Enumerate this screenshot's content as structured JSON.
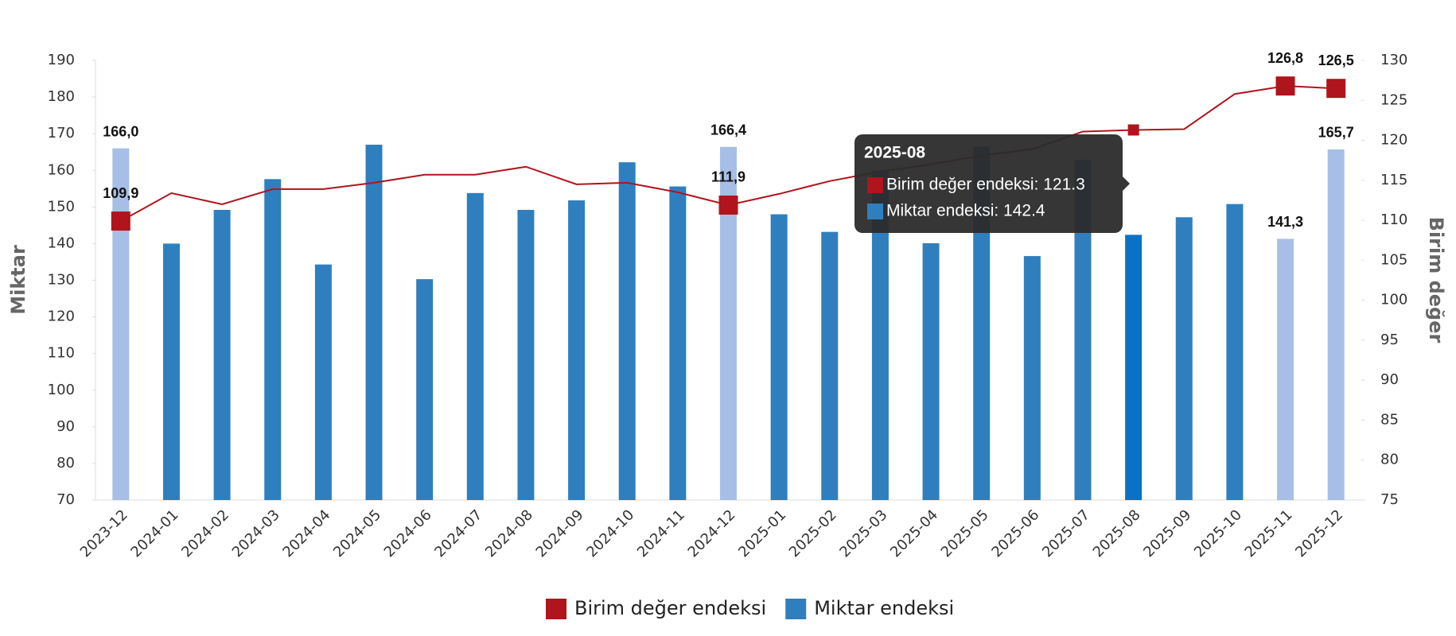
{
  "chart_data": {
    "type": "combo",
    "categories": [
      "2023-12",
      "2024-01",
      "2024-02",
      "2024-03",
      "2024-04",
      "2024-05",
      "2024-06",
      "2024-07",
      "2024-08",
      "2024-09",
      "2024-10",
      "2024-11",
      "2024-12",
      "2025-01",
      "2025-02",
      "2025-03",
      "2025-04",
      "2025-05",
      "2025-06",
      "2025-07",
      "2025-08",
      "2025-09",
      "2025-10",
      "2025-11",
      "2025-12"
    ],
    "series": [
      {
        "name": "Birim değer endeksi",
        "type": "line",
        "axis": "y2",
        "color": "#b0141c",
        "values": [
          109.9,
          113.4,
          112.0,
          113.9,
          113.9,
          114.7,
          115.7,
          115.7,
          116.7,
          114.5,
          114.7,
          113.5,
          111.9,
          113.3,
          114.9,
          116.1,
          117.0,
          118.1,
          118.9,
          121.1,
          121.3,
          121.4,
          125.8,
          126.8,
          126.5
        ],
        "value_labels": [
          "109,9",
          null,
          null,
          null,
          null,
          null,
          null,
          null,
          null,
          null,
          null,
          null,
          "111,9",
          null,
          null,
          null,
          null,
          null,
          null,
          null,
          null,
          null,
          null,
          "126,8",
          "126,5"
        ],
        "markers": [
          0,
          12,
          23,
          24
        ]
      },
      {
        "name": "Miktar endeksi",
        "type": "bar",
        "axis": "y",
        "color": "#2f7fbf",
        "values": [
          166.0,
          140.0,
          149.2,
          157.6,
          134.3,
          167.0,
          130.3,
          153.8,
          149.2,
          151.8,
          162.2,
          155.6,
          166.4,
          148.0,
          143.2,
          159.9,
          140.1,
          166.5,
          136.6,
          162.9,
          142.4,
          147.2,
          150.8,
          141.3,
          165.7
        ],
        "value_labels": [
          "166,0",
          null,
          null,
          null,
          null,
          null,
          null,
          null,
          null,
          null,
          null,
          null,
          "166,4",
          null,
          null,
          null,
          null,
          null,
          null,
          null,
          null,
          null,
          null,
          "141,3",
          "165,7"
        ],
        "colors": [
          "#a7bfe6",
          "#2f7fbf",
          "#2f7fbf",
          "#2f7fbf",
          "#2f7fbf",
          "#2f7fbf",
          "#2f7fbf",
          "#2f7fbf",
          "#2f7fbf",
          "#2f7fbf",
          "#2f7fbf",
          "#2f7fbf",
          "#a7bfe6",
          "#2f7fbf",
          "#2f7fbf",
          "#2f7fbf",
          "#2f7fbf",
          "#2f7fbf",
          "#2f7fbf",
          "#2f7fbf",
          "#0a72c4",
          "#2f7fbf",
          "#2f7fbf",
          "#a7bfe6",
          "#a7bfe6"
        ]
      }
    ],
    "ylabel": "Miktar",
    "y2label": "Birim değer",
    "ylim": [
      70,
      190
    ],
    "yticks": [
      70,
      80,
      90,
      100,
      110,
      120,
      130,
      140,
      150,
      160,
      170,
      180,
      190
    ],
    "y2lim": [
      75,
      130
    ],
    "y2ticks": [
      75,
      80,
      85,
      90,
      95,
      100,
      105,
      110,
      115,
      120,
      125,
      130
    ],
    "hover_index": 20,
    "tooltip": {
      "title": "2025-08",
      "lines": [
        "Birim değer endeksi: 121.3",
        "Miktar endeksi: 142.4"
      ]
    },
    "legend": "bottom"
  }
}
